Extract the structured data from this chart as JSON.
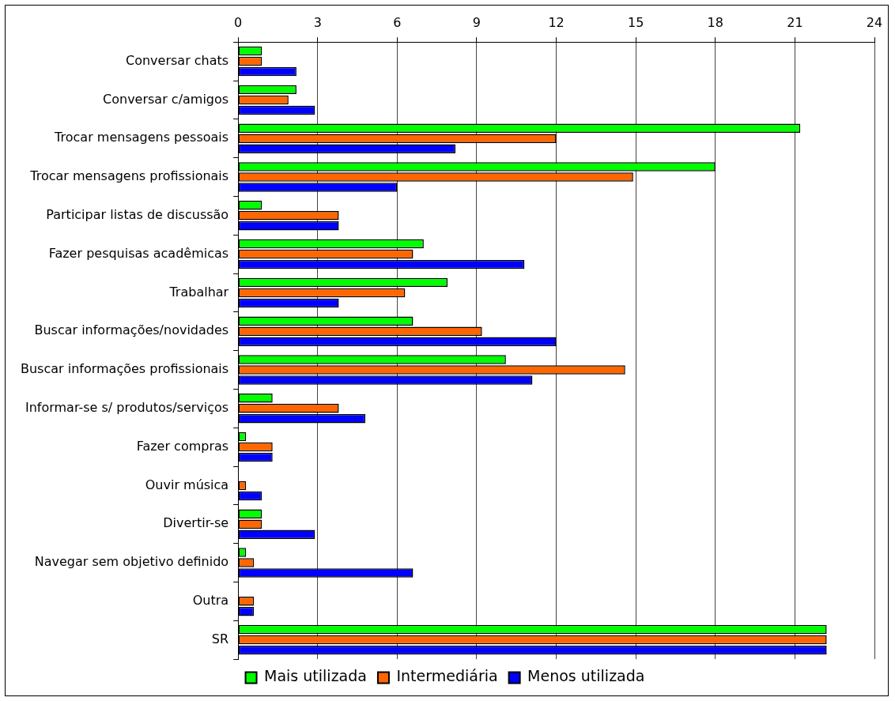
{
  "chart_data": {
    "type": "bar",
    "orientation": "horizontal",
    "categories": [
      "Conversar chats",
      "Conversar c/amigos",
      "Trocar mensagens pessoais",
      "Trocar mensagens profissionais",
      "Participar listas de discussão",
      "Fazer pesquisas acadêmicas",
      "Trabalhar",
      "Buscar informações/novidades",
      "Buscar informações profissionais",
      "Informar-se s/ produtos/serviços",
      "Fazer compras",
      "Ouvir música",
      "Divertir-se",
      "Navegar sem objetivo definido",
      "Outra",
      "SR"
    ],
    "series": [
      {
        "name": "Mais utilizada",
        "color": "#00ff00",
        "values": [
          0.9,
          2.2,
          21.2,
          18.0,
          0.9,
          7.0,
          7.9,
          6.6,
          10.1,
          1.3,
          0.3,
          0,
          0.9,
          0.3,
          0,
          22.2
        ]
      },
      {
        "name": "Intermediária",
        "color": "#ff6600",
        "values": [
          0.9,
          1.9,
          12.0,
          14.9,
          3.8,
          6.6,
          6.3,
          9.2,
          14.6,
          3.8,
          1.3,
          0.3,
          0.9,
          0.6,
          0.6,
          22.2
        ]
      },
      {
        "name": "Menos utilizada",
        "color": "#0000ff",
        "values": [
          2.2,
          2.9,
          8.2,
          6.0,
          3.8,
          10.8,
          3.8,
          12.0,
          11.1,
          4.8,
          1.3,
          0.9,
          2.9,
          6.6,
          0.6,
          22.2
        ]
      }
    ],
    "xlim": [
      0,
      24
    ],
    "xticks": [
      0,
      3,
      6,
      9,
      12,
      15,
      18,
      21,
      24
    ],
    "grid": "x",
    "legend": "bottom"
  }
}
